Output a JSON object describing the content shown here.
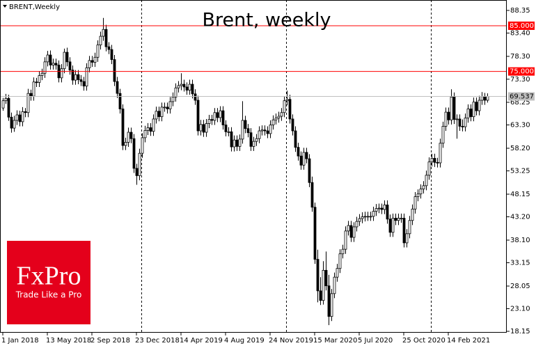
{
  "chart_data": {
    "type": "candlestick",
    "title": "Brent, weekly",
    "symbol": "BRENT,Weekly",
    "up_color": "#ffffff",
    "down_color": "#000000",
    "wick_color": "#000000",
    "ylim": [
      17.85,
      90.63
    ],
    "yticks": [
      {
        "value": 88.35,
        "label": "88.35"
      },
      {
        "value": 83.4,
        "label": "83.40"
      },
      {
        "value": 78.3,
        "label": "78.30"
      },
      {
        "value": 73.3,
        "label": "73.30"
      },
      {
        "value": 68.25,
        "label": "68.25"
      },
      {
        "value": 63.3,
        "label": "63.30"
      },
      {
        "value": 58.2,
        "label": "58.20"
      },
      {
        "value": 53.25,
        "label": "53.25"
      },
      {
        "value": 48.15,
        "label": "48.15"
      },
      {
        "value": 43.2,
        "label": "43.20"
      },
      {
        "value": 38.1,
        "label": "38.10"
      },
      {
        "value": 33.15,
        "label": "33.15"
      },
      {
        "value": 28.05,
        "label": "28.05"
      },
      {
        "value": 23.1,
        "label": "23.10"
      },
      {
        "value": 18.15,
        "label": "18.15"
      }
    ],
    "xticks": [
      {
        "value": 0,
        "label": "1 Jan 2018"
      },
      {
        "value": 16,
        "label": "13 May 2018"
      },
      {
        "value": 32,
        "label": "2 Sep 2018"
      },
      {
        "value": 48,
        "label": "23 Dec 2018"
      },
      {
        "value": 64,
        "label": "14 Apr 2019"
      },
      {
        "value": 80,
        "label": "4 Aug 2019"
      },
      {
        "value": 96,
        "label": "24 Nov 2019"
      },
      {
        "value": 112,
        "label": "15 Mar 2020"
      },
      {
        "value": 128,
        "label": "5 Jul 2020"
      },
      {
        "value": 144,
        "label": "25 Oct 2020"
      },
      {
        "value": 160,
        "label": "14 Feb 2021"
      }
    ],
    "hlines": [
      {
        "value": 85,
        "label": "85.000",
        "color": "#ff0000"
      },
      {
        "value": 75,
        "label": "75.000",
        "color": "#ff0000"
      }
    ],
    "last_price": {
      "value": 69.537,
      "label": "69.537",
      "color": "#c0c0c0"
    },
    "candles": [
      [
        67.0,
        69.2,
        66.4,
        68.6
      ],
      [
        68.6,
        70.1,
        67.9,
        69.1
      ],
      [
        69.1,
        69.9,
        64.2,
        65.0
      ],
      [
        65.0,
        66.0,
        61.6,
        62.6
      ],
      [
        62.6,
        65.3,
        61.8,
        64.3
      ],
      [
        64.3,
        66.5,
        63.3,
        65.5
      ],
      [
        65.5,
        66.4,
        63.0,
        64.0
      ],
      [
        64.0,
        67.2,
        63.0,
        66.2
      ],
      [
        66.2,
        67.0,
        65.0,
        66.0
      ],
      [
        66.0,
        71.2,
        65.0,
        70.2
      ],
      [
        70.2,
        71.0,
        68.6,
        69.6
      ],
      [
        69.6,
        73.7,
        68.6,
        72.7
      ],
      [
        72.7,
        73.6,
        71.6,
        72.6
      ],
      [
        72.6,
        75.1,
        71.6,
        74.1
      ],
      [
        74.1,
        75.6,
        73.1,
        74.6
      ],
      [
        74.6,
        78.1,
        73.6,
        77.1
      ],
      [
        77.1,
        79.5,
        76.1,
        78.6
      ],
      [
        78.6,
        79.6,
        75.4,
        76.4
      ],
      [
        76.4,
        77.8,
        75.4,
        76.8
      ],
      [
        76.8,
        77.8,
        75.4,
        76.4
      ],
      [
        76.4,
        77.4,
        72.6,
        73.6
      ],
      [
        73.6,
        76.6,
        72.6,
        75.6
      ],
      [
        75.6,
        80.0,
        74.6,
        79.2
      ],
      [
        79.2,
        80.2,
        76.1,
        77.1
      ],
      [
        77.1,
        78.1,
        74.3,
        75.3
      ],
      [
        75.3,
        76.3,
        72.1,
        73.1
      ],
      [
        73.1,
        75.3,
        72.1,
        74.3
      ],
      [
        74.3,
        75.3,
        72.2,
        73.2
      ],
      [
        73.2,
        74.2,
        71.8,
        72.8
      ],
      [
        72.8,
        73.8,
        70.8,
        71.8
      ],
      [
        71.8,
        76.8,
        70.8,
        75.8
      ],
      [
        75.8,
        78.4,
        74.8,
        77.4
      ],
      [
        77.4,
        78.4,
        76.0,
        77.0
      ],
      [
        77.0,
        79.1,
        76.0,
        78.1
      ],
      [
        78.1,
        81.8,
        77.1,
        80.8
      ],
      [
        80.8,
        83.7,
        79.8,
        82.7
      ],
      [
        82.7,
        86.7,
        81.7,
        84.2
      ],
      [
        84.2,
        85.2,
        79.4,
        80.4
      ],
      [
        80.4,
        81.4,
        78.8,
        79.8
      ],
      [
        79.8,
        80.8,
        76.6,
        77.6
      ],
      [
        77.6,
        78.6,
        71.8,
        72.8
      ],
      [
        72.8,
        73.8,
        69.2,
        70.2
      ],
      [
        70.2,
        71.2,
        65.8,
        66.8
      ],
      [
        66.8,
        67.8,
        57.8,
        58.8
      ],
      [
        58.8,
        60.5,
        57.8,
        59.5
      ],
      [
        59.5,
        62.7,
        58.5,
        61.7
      ],
      [
        61.7,
        62.7,
        59.3,
        60.3
      ],
      [
        60.3,
        61.3,
        52.8,
        53.8
      ],
      [
        53.8,
        54.8,
        50.2,
        52.2
      ],
      [
        52.2,
        58.1,
        51.2,
        57.1
      ],
      [
        57.1,
        61.5,
        56.1,
        60.5
      ],
      [
        60.5,
        63.1,
        59.5,
        62.1
      ],
      [
        62.1,
        63.7,
        61.1,
        62.7
      ],
      [
        62.7,
        63.7,
        60.9,
        61.9
      ],
      [
        61.9,
        65.6,
        60.9,
        64.6
      ],
      [
        64.6,
        67.3,
        63.6,
        66.3
      ],
      [
        66.3,
        67.3,
        64.1,
        65.1
      ],
      [
        65.1,
        68.2,
        64.1,
        67.2
      ],
      [
        67.2,
        68.2,
        66.2,
        67.2
      ],
      [
        67.2,
        68.2,
        65.8,
        66.8
      ],
      [
        66.8,
        69.4,
        65.8,
        68.4
      ],
      [
        68.4,
        70.4,
        67.4,
        69.4
      ],
      [
        69.4,
        72.4,
        68.4,
        71.4
      ],
      [
        71.4,
        72.9,
        70.4,
        71.9
      ],
      [
        71.9,
        74.6,
        70.9,
        72.2
      ],
      [
        72.2,
        73.2,
        70.6,
        71.6
      ],
      [
        71.6,
        72.6,
        69.9,
        70.9
      ],
      [
        70.9,
        73.2,
        69.9,
        72.2
      ],
      [
        72.2,
        73.2,
        69.1,
        70.1
      ],
      [
        70.1,
        71.1,
        67.7,
        68.7
      ],
      [
        68.7,
        69.7,
        61.0,
        62.0
      ],
      [
        62.0,
        64.4,
        61.0,
        63.4
      ],
      [
        63.4,
        64.4,
        60.7,
        61.7
      ],
      [
        61.7,
        64.6,
        60.7,
        63.6
      ],
      [
        63.6,
        65.5,
        62.6,
        64.5
      ],
      [
        64.5,
        65.5,
        63.3,
        64.3
      ],
      [
        64.3,
        67.0,
        63.3,
        66.0
      ],
      [
        66.0,
        67.0,
        63.9,
        64.9
      ],
      [
        64.9,
        67.4,
        63.9,
        66.4
      ],
      [
        66.4,
        67.4,
        62.3,
        63.3
      ],
      [
        63.3,
        64.3,
        60.8,
        61.8
      ],
      [
        61.8,
        62.8,
        60.8,
        61.8
      ],
      [
        61.8,
        62.8,
        57.5,
        58.5
      ],
      [
        58.5,
        61.0,
        57.5,
        60.0
      ],
      [
        60.0,
        61.0,
        57.6,
        58.6
      ],
      [
        58.6,
        61.2,
        57.6,
        60.2
      ],
      [
        60.2,
        68.5,
        59.2,
        64.3
      ],
      [
        64.3,
        65.3,
        61.5,
        62.5
      ],
      [
        62.5,
        63.5,
        60.6,
        61.6
      ],
      [
        61.6,
        62.6,
        57.6,
        58.6
      ],
      [
        58.6,
        60.7,
        57.6,
        59.7
      ],
      [
        59.7,
        61.3,
        58.7,
        60.3
      ],
      [
        60.3,
        63.0,
        59.3,
        62.0
      ],
      [
        62.0,
        63.2,
        61.0,
        62.2
      ],
      [
        62.2,
        63.2,
        61.0,
        62.0
      ],
      [
        62.0,
        63.0,
        60.4,
        61.4
      ],
      [
        61.4,
        64.3,
        60.4,
        63.3
      ],
      [
        63.3,
        65.4,
        62.3,
        64.4
      ],
      [
        64.4,
        65.8,
        63.4,
        64.8
      ],
      [
        64.8,
        66.2,
        63.8,
        65.2
      ],
      [
        65.2,
        67.0,
        64.2,
        66.0
      ],
      [
        66.0,
        69.6,
        65.0,
        68.6
      ],
      [
        68.6,
        70.8,
        67.6,
        68.9
      ],
      [
        68.9,
        69.9,
        63.6,
        64.6
      ],
      [
        64.6,
        65.6,
        61.0,
        62.0
      ],
      [
        62.0,
        63.0,
        57.4,
        58.4
      ],
      [
        58.4,
        59.4,
        55.5,
        56.5
      ],
      [
        56.5,
        57.5,
        53.5,
        54.5
      ],
      [
        54.5,
        58.3,
        53.5,
        57.3
      ],
      [
        57.3,
        58.3,
        54.9,
        55.9
      ],
      [
        55.9,
        56.9,
        49.7,
        50.7
      ],
      [
        50.7,
        52.0,
        44.3,
        45.3
      ],
      [
        45.3,
        46.3,
        32.9,
        33.9
      ],
      [
        33.9,
        36.0,
        24.5,
        27.0
      ],
      [
        27.0,
        30.0,
        23.9,
        24.9
      ],
      [
        24.9,
        33.5,
        24.0,
        31.5
      ],
      [
        31.5,
        35.6,
        27.1,
        28.1
      ],
      [
        28.1,
        30.5,
        19.5,
        21.4
      ],
      [
        21.4,
        27.4,
        20.4,
        26.4
      ],
      [
        26.4,
        31.0,
        25.4,
        30.0
      ],
      [
        30.0,
        32.9,
        29.0,
        31.9
      ],
      [
        31.9,
        36.1,
        30.9,
        35.1
      ],
      [
        35.1,
        37.1,
        34.1,
        36.1
      ],
      [
        36.1,
        41.1,
        35.1,
        40.1
      ],
      [
        40.1,
        42.3,
        39.1,
        41.3
      ],
      [
        41.3,
        42.3,
        37.7,
        38.7
      ],
      [
        38.7,
        42.0,
        37.7,
        41.0
      ],
      [
        41.0,
        43.2,
        40.0,
        42.2
      ],
      [
        42.2,
        43.8,
        41.2,
        42.8
      ],
      [
        42.8,
        44.2,
        41.8,
        43.2
      ],
      [
        43.2,
        44.3,
        42.2,
        43.3
      ],
      [
        43.3,
        44.3,
        42.3,
        43.3
      ],
      [
        43.3,
        44.3,
        42.3,
        43.3
      ],
      [
        43.3,
        45.4,
        42.3,
        44.4
      ],
      [
        44.4,
        46.0,
        43.4,
        45.0
      ],
      [
        45.0,
        46.1,
        44.0,
        45.1
      ],
      [
        45.1,
        46.1,
        43.8,
        44.8
      ],
      [
        44.8,
        46.8,
        43.8,
        45.8
      ],
      [
        45.8,
        46.8,
        41.7,
        42.7
      ],
      [
        42.7,
        43.7,
        38.8,
        39.8
      ],
      [
        39.8,
        43.9,
        38.8,
        42.9
      ],
      [
        42.9,
        43.9,
        41.4,
        42.4
      ],
      [
        42.4,
        43.9,
        41.4,
        42.9
      ],
      [
        42.9,
        43.9,
        41.9,
        42.9
      ],
      [
        42.9,
        43.9,
        36.5,
        37.5
      ],
      [
        37.5,
        40.5,
        36.5,
        39.5
      ],
      [
        39.5,
        43.4,
        38.5,
        42.4
      ],
      [
        42.4,
        45.9,
        41.4,
        44.9
      ],
      [
        44.9,
        48.6,
        43.9,
        47.6
      ],
      [
        47.6,
        49.2,
        46.6,
        48.2
      ],
      [
        48.2,
        50.3,
        47.2,
        49.3
      ],
      [
        49.3,
        51.0,
        48.3,
        50.0
      ],
      [
        50.0,
        53.3,
        49.0,
        52.3
      ],
      [
        52.3,
        56.2,
        51.3,
        55.2
      ],
      [
        55.2,
        57.0,
        54.2,
        56.0
      ],
      [
        56.0,
        57.0,
        54.1,
        55.1
      ],
      [
        55.1,
        56.1,
        54.0,
        55.0
      ],
      [
        55.0,
        60.3,
        54.0,
        59.3
      ],
      [
        59.3,
        64.0,
        58.3,
        63.0
      ],
      [
        63.0,
        67.1,
        62.0,
        66.1
      ],
      [
        66.1,
        67.1,
        63.4,
        64.4
      ],
      [
        64.4,
        71.1,
        63.4,
        69.4
      ],
      [
        69.4,
        70.4,
        63.5,
        64.5
      ],
      [
        64.5,
        65.6,
        60.3,
        64.6
      ],
      [
        64.6,
        65.6,
        62.0,
        63.0
      ],
      [
        63.0,
        64.5,
        61.9,
        62.9
      ],
      [
        62.9,
        65.8,
        61.9,
        64.8
      ],
      [
        64.8,
        67.8,
        63.8,
        66.8
      ],
      [
        66.8,
        67.8,
        64.1,
        65.1
      ],
      [
        65.1,
        69.3,
        64.1,
        68.3
      ],
      [
        68.3,
        69.3,
        65.4,
        66.4
      ],
      [
        66.4,
        69.7,
        65.4,
        68.7
      ],
      [
        68.7,
        70.5,
        67.7,
        69.5
      ],
      [
        69.5,
        70.3,
        67.7,
        68.7
      ],
      [
        68.7,
        70.2,
        68.2,
        69.537
      ]
    ]
  },
  "logo": {
    "name": "FxPro",
    "tagline": "Trade Like a Pro"
  }
}
